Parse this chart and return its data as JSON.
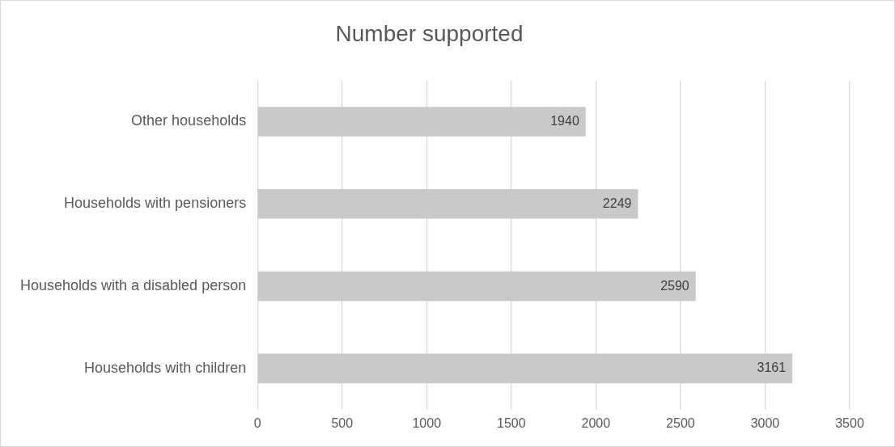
{
  "chart_data": {
    "type": "bar",
    "orientation": "horizontal",
    "title": "Number supported",
    "categories": [
      "Other households",
      "Households with pensioners",
      "Households with a disabled person",
      "Households with children"
    ],
    "values": [
      1940,
      2249,
      2590,
      3161
    ],
    "color": "#c9c9c9",
    "xlim": [
      0,
      3500
    ],
    "xticks": [
      0,
      500,
      1000,
      1500,
      2000,
      2500,
      3000,
      3500
    ],
    "grid": "x",
    "data_labels": true
  }
}
